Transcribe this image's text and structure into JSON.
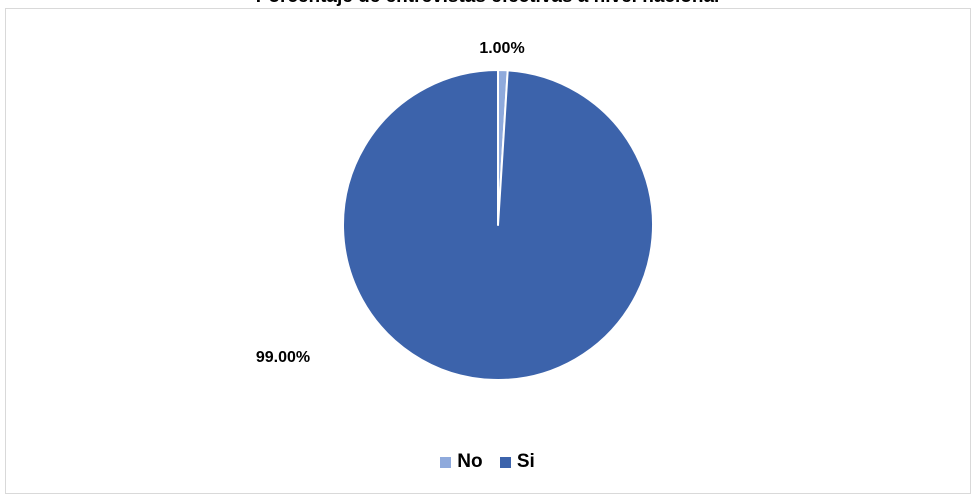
{
  "chart_data": {
    "type": "pie",
    "title": "Porcentaje de entrevistas efectivas a nivel nacional",
    "categories": [
      "No",
      "Si"
    ],
    "values": [
      1.0,
      99.0
    ],
    "value_labels": [
      "1.00%",
      "99.00%"
    ],
    "colors": [
      "#8faadc",
      "#3c63ab"
    ],
    "legend_position": "bottom",
    "legend": [
      {
        "label": "No",
        "color": "#8faadc"
      },
      {
        "label": "Si",
        "color": "#3c63ab"
      }
    ]
  }
}
